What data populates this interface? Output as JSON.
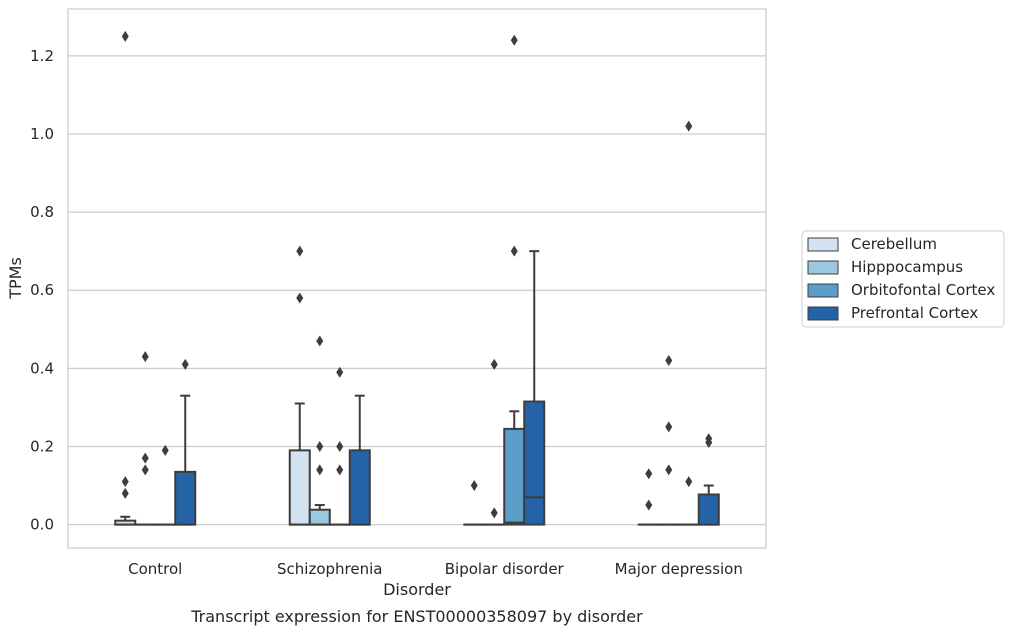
{
  "caption": "Transcript expression for ENST00000358097 by disorder",
  "chart_data": {
    "type": "box",
    "title": "",
    "xlabel": "Disorder",
    "ylabel": "TPMs",
    "categories": [
      "Control",
      "Schizophrenia",
      "Bipolar disorder",
      "Major depression"
    ],
    "ylim": [
      -0.06,
      1.32
    ],
    "yticks": [
      0.0,
      0.2,
      0.4,
      0.6,
      0.8,
      1.0,
      1.2
    ],
    "ytick_labels": [
      "0.0",
      "0.2",
      "0.4",
      "0.6",
      "0.8",
      "1.0",
      "1.2"
    ],
    "grid": "horizontal",
    "legend_position": "right",
    "series": [
      {
        "name": "Cerebellum",
        "color": "#d3e2f1",
        "boxes": [
          {
            "q1": 0.0,
            "median": 0.0,
            "q3": 0.01,
            "whisker_low": 0.0,
            "whisker_high": 0.02,
            "outliers": [
              1.25,
              0.11,
              0.08
            ]
          },
          {
            "q1": 0.0,
            "median": 0.0,
            "q3": 0.19,
            "whisker_low": 0.0,
            "whisker_high": 0.31,
            "outliers": [
              0.7,
              0.58
            ]
          },
          {
            "q1": 0.0,
            "median": 0.0,
            "q3": 0.0,
            "whisker_low": 0.0,
            "whisker_high": 0.0,
            "outliers": [
              0.1
            ]
          },
          {
            "q1": 0.0,
            "median": 0.0,
            "q3": 0.0,
            "whisker_low": 0.0,
            "whisker_high": 0.0,
            "outliers": [
              0.13,
              0.05
            ]
          }
        ]
      },
      {
        "name": "Hipppocampus",
        "color": "#9ac8e0",
        "boxes": [
          {
            "q1": 0.0,
            "median": 0.0,
            "q3": 0.0,
            "whisker_low": 0.0,
            "whisker_high": 0.0,
            "outliers": [
              0.43,
              0.17,
              0.14
            ]
          },
          {
            "q1": 0.0,
            "median": 0.0,
            "q3": 0.038,
            "whisker_low": 0.0,
            "whisker_high": 0.05,
            "outliers": [
              0.47,
              0.2,
              0.14
            ]
          },
          {
            "q1": 0.0,
            "median": 0.0,
            "q3": 0.0,
            "whisker_low": 0.0,
            "whisker_high": 0.0,
            "outliers": [
              0.41,
              0.03
            ]
          },
          {
            "q1": 0.0,
            "median": 0.0,
            "q3": 0.0,
            "whisker_low": 0.0,
            "whisker_high": 0.0,
            "outliers": [
              0.42,
              0.25,
              0.14
            ]
          }
        ]
      },
      {
        "name": "Orbitofontal Cortex",
        "color": "#5a9dc8",
        "boxes": [
          {
            "q1": 0.0,
            "median": 0.0,
            "q3": 0.0,
            "whisker_low": 0.0,
            "whisker_high": 0.0,
            "outliers": [
              0.19
            ]
          },
          {
            "q1": 0.0,
            "median": 0.0,
            "q3": 0.0,
            "whisker_low": 0.0,
            "whisker_high": 0.0,
            "outliers": [
              0.39,
              0.2,
              0.14
            ]
          },
          {
            "q1": 0.0,
            "median": 0.005,
            "q3": 0.245,
            "whisker_low": 0.0,
            "whisker_high": 0.29,
            "outliers": [
              1.24,
              0.7
            ]
          },
          {
            "q1": 0.0,
            "median": 0.0,
            "q3": 0.0,
            "whisker_low": 0.0,
            "whisker_high": 0.0,
            "outliers": [
              1.02,
              0.11
            ]
          }
        ]
      },
      {
        "name": "Prefrontal Cortex",
        "color": "#2464a6",
        "boxes": [
          {
            "q1": 0.0,
            "median": 0.0,
            "q3": 0.135,
            "whisker_low": 0.0,
            "whisker_high": 0.33,
            "outliers": [
              0.41
            ]
          },
          {
            "q1": 0.0,
            "median": 0.0,
            "q3": 0.19,
            "whisker_low": 0.0,
            "whisker_high": 0.33,
            "outliers": []
          },
          {
            "q1": 0.0,
            "median": 0.07,
            "q3": 0.315,
            "whisker_low": 0.0,
            "whisker_high": 0.7,
            "outliers": []
          },
          {
            "q1": 0.0,
            "median": 0.0,
            "q3": 0.077,
            "whisker_low": 0.0,
            "whisker_high": 0.1,
            "outliers": [
              0.22,
              0.21
            ]
          }
        ]
      }
    ]
  }
}
